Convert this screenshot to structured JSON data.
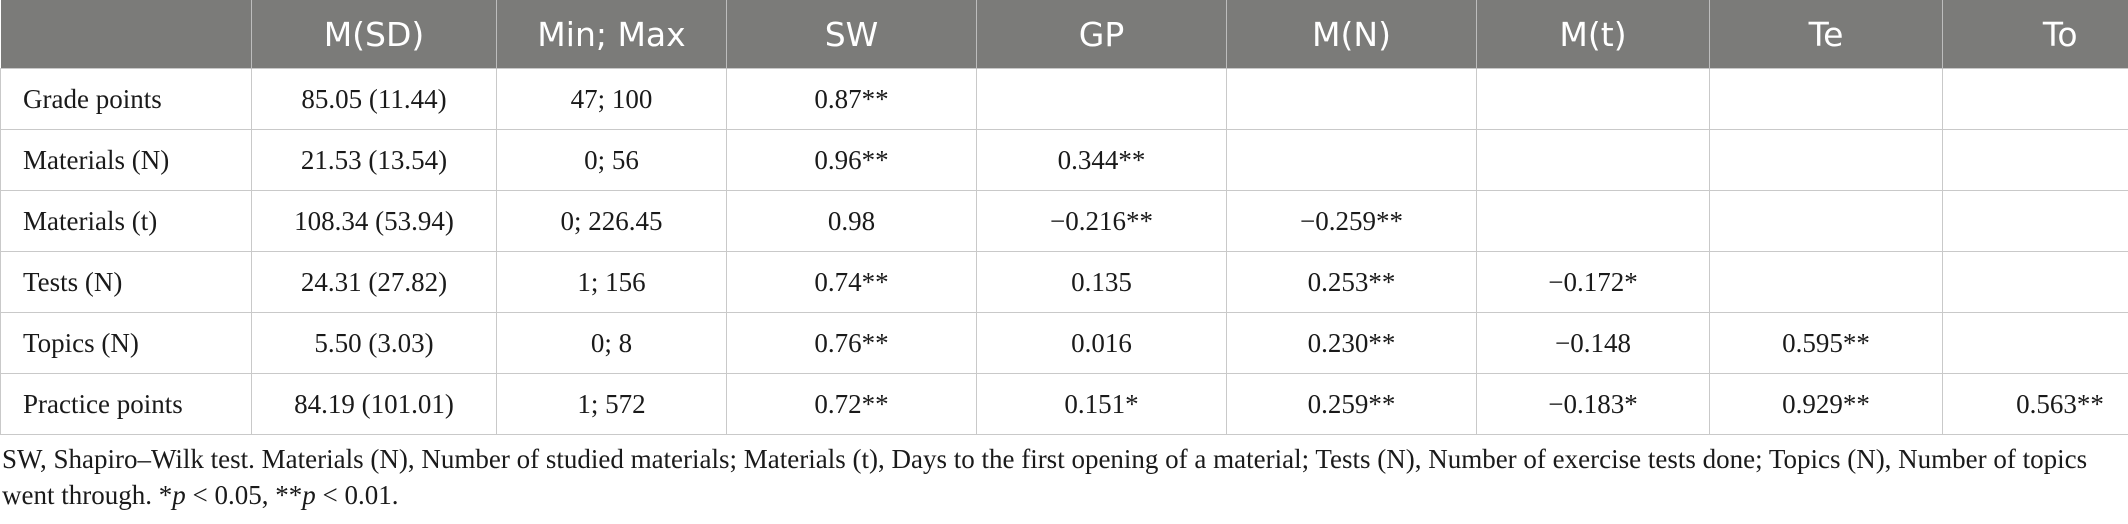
{
  "table": {
    "headers": [
      "",
      "M(SD)",
      "Min; Max",
      "SW",
      "GP",
      "M(N)",
      "M(t)",
      "Te",
      "To"
    ],
    "rows": [
      [
        "Grade points",
        "85.05 (11.44)",
        "47; 100",
        "0.87**",
        "",
        "",
        "",
        "",
        ""
      ],
      [
        "Materials (N)",
        "21.53 (13.54)",
        "0; 56",
        "0.96**",
        "0.344**",
        "",
        "",
        "",
        ""
      ],
      [
        "Materials (t)",
        "108.34 (53.94)",
        "0; 226.45",
        "0.98",
        "−0.216**",
        "−0.259**",
        "",
        "",
        ""
      ],
      [
        "Tests (N)",
        "24.31 (27.82)",
        "1; 156",
        "0.74**",
        "0.135",
        "0.253**",
        "−0.172*",
        "",
        ""
      ],
      [
        "Topics (N)",
        "5.50 (3.03)",
        "0; 8",
        "0.76**",
        "0.016",
        "0.230**",
        "−0.148",
        "0.595**",
        ""
      ],
      [
        "Practice points",
        "84.19 (101.01)",
        "1; 572",
        "0.72**",
        "0.151*",
        "0.259**",
        "−0.183*",
        "0.929**",
        "0.563**"
      ]
    ]
  },
  "footnote": {
    "main": "SW, Shapiro–Wilk test. Materials (N), Number of studied materials; Materials (t), Days to the first opening of a material; Tests (N), Number of exercise tests done; Topics (N), Number of topics went through. *",
    "p1": "p",
    "mid": " < 0.05, **",
    "p2": "p",
    "end": " < 0.01."
  },
  "colors": {
    "header_bg": "#7b7b79",
    "header_text": "#ffffff",
    "grid": "#c9c9c9"
  }
}
